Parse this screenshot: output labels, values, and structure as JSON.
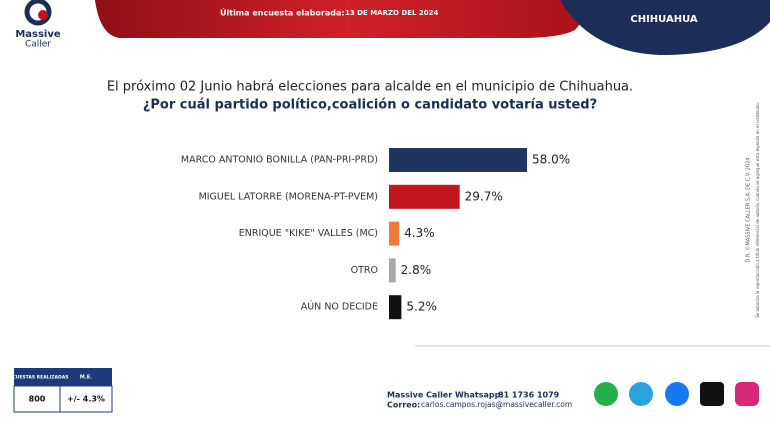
{
  "header": {
    "brand_1": "Massive",
    "brand_2": "Caller",
    "survey_label": "Última encuesta elaborada:",
    "survey_date": "13 DE MARZO DEL 2024",
    "region": "CHIHUAHUA"
  },
  "chart_data": {
    "type": "bar",
    "orientation": "horizontal",
    "title": "El próximo 02 Junio habrá elecciones para alcalde en el municipio de Chihuahua.",
    "subtitle": "¿Por cuál partido político,coalición o candidato votaría usted?",
    "categories": [
      "MARCO ANTONIO BONILLA (PAN-PRI-PRD)",
      "MIGUEL LATORRE (MORENA-PT-PVEM)",
      "ENRIQUE \"KIKE\" VALLES (MC)",
      "OTRO",
      "AÚN NO DECIDE"
    ],
    "values": [
      58.0,
      29.7,
      4.3,
      2.8,
      5.2
    ],
    "value_labels": [
      "58.0%",
      "29.7%",
      "4.3%",
      "2.8%",
      "5.2%"
    ],
    "colors": [
      "#1f3461",
      "#c3161c",
      "#ef7b3b",
      "#a8a8a8",
      "#111111"
    ]
  },
  "side_note": {
    "line_1": "D.R. ©MASSIVE CALLER S.A. DE C.V. 2024",
    "line_2": "Se autoriza la reproducción a título referencial de autoría, cuando se agregue esta leyenda en el contenido."
  },
  "survey_box": {
    "headers": [
      "ENCUESTAS REALIZADAS",
      "M.E."
    ],
    "values": [
      "800",
      "+/- 4.3%"
    ]
  },
  "footer": {
    "whatsapp_label": "Massive Caller Whatsapp:",
    "whatsapp": "81 1736 1079",
    "email_label": "Correo:",
    "email": "carlos.campos.rojas@massivecaller.com"
  }
}
